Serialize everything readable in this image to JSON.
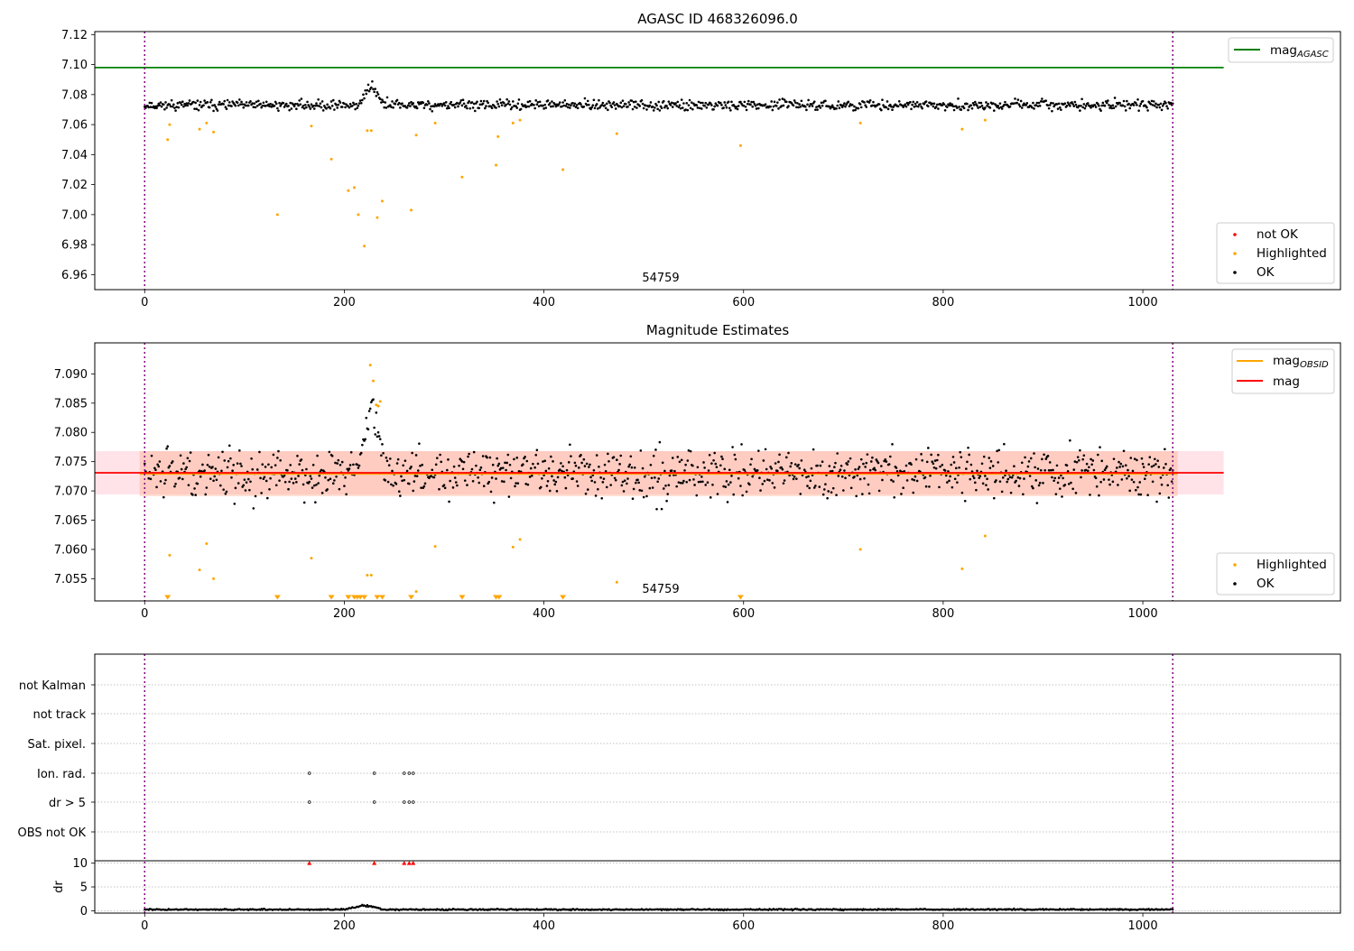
{
  "figure": {
    "panels": [
      {
        "title": "AGASC ID 468326096.0",
        "annotation": "54759",
        "legends": [
          {
            "items": [
              {
                "label": "mag",
                "sub": "AGASC",
                "kind": "line",
                "color": "#008000"
              }
            ]
          },
          {
            "items": [
              {
                "label": "not OK",
                "kind": "point",
                "color": "#ff0000"
              },
              {
                "label": "Highlighted",
                "kind": "point",
                "color": "#ffa500"
              },
              {
                "label": "OK",
                "kind": "point",
                "color": "#000000"
              }
            ]
          }
        ]
      },
      {
        "title": "Magnitude Estimates",
        "annotation": "54759",
        "legends": [
          {
            "items": [
              {
                "label": "mag",
                "sub": "OBSID",
                "kind": "line",
                "color": "#ffa500"
              },
              {
                "label": "mag",
                "kind": "line",
                "color": "#ff0000"
              }
            ]
          },
          {
            "items": [
              {
                "label": "Highlighted",
                "kind": "point",
                "color": "#ffa500"
              },
              {
                "label": "OK",
                "kind": "point",
                "color": "#000000"
              }
            ]
          }
        ]
      },
      {
        "title": "",
        "flag_labels": [
          "not Kalman",
          "not track",
          "Sat. pixel.",
          "Ion. rad.",
          "dr > 5",
          "OBS not OK"
        ],
        "dr_label": "dr"
      }
    ]
  },
  "chart_data": [
    {
      "type": "scatter",
      "title": "AGASC ID 468326096.0",
      "xlabel": "",
      "ylabel": "",
      "xlim": [
        -50,
        1198
      ],
      "ylim": [
        6.95,
        7.122
      ],
      "xticks": [
        0,
        200,
        400,
        600,
        800,
        1000
      ],
      "yticks": [
        6.96,
        6.98,
        7.0,
        7.02,
        7.04,
        7.06,
        7.08,
        7.1,
        7.12
      ],
      "ytick_decimals": 2,
      "grid": false,
      "legend_position": [
        "upper right",
        "lower right"
      ],
      "obsid_boundaries": [
        0,
        1030
      ],
      "reference_lines": [
        {
          "name": "mag_AGASC",
          "y": 7.098,
          "x_range": [
            -50,
            1081
          ],
          "color": "#008000"
        }
      ],
      "annotations": [
        {
          "text": "54759",
          "x": 515,
          "y": 6.955
        }
      ],
      "ok_series": {
        "name": "OK",
        "color": "#000000",
        "x_range": [
          0,
          1030
        ],
        "count": 1031,
        "baseline": 7.073,
        "scatter": 0.0028,
        "features": [
          {
            "x_range": [
              215,
              240
            ],
            "peak": 7.091
          }
        ]
      },
      "series": [
        {
          "name": "Highlighted",
          "color": "#ffa500",
          "points": [
            [
              23,
              7.05
            ],
            [
              25,
              7.06
            ],
            [
              55,
              7.057
            ],
            [
              62,
              7.061
            ],
            [
              69,
              7.055
            ],
            [
              133,
              7.0
            ],
            [
              167,
              7.059
            ],
            [
              187,
              7.037
            ],
            [
              204,
              7.016
            ],
            [
              210,
              7.018
            ],
            [
              214,
              7.0
            ],
            [
              220,
              6.979
            ],
            [
              223,
              7.056
            ],
            [
              227,
              7.056
            ],
            [
              233,
              6.998
            ],
            [
              238,
              7.009
            ],
            [
              267,
              7.003
            ],
            [
              272,
              7.053
            ],
            [
              291,
              7.061
            ],
            [
              318,
              7.025
            ],
            [
              352,
              7.033
            ],
            [
              354,
              7.052
            ],
            [
              369,
              7.061
            ],
            [
              376,
              7.063
            ],
            [
              419,
              7.03
            ],
            [
              473,
              7.054
            ],
            [
              597,
              7.046
            ],
            [
              717,
              7.061
            ],
            [
              819,
              7.057
            ],
            [
              842,
              7.063
            ]
          ]
        },
        {
          "name": "not OK",
          "color": "#ff0000",
          "points": []
        }
      ]
    },
    {
      "type": "scatter",
      "title": "Magnitude Estimates",
      "xlabel": "",
      "ylabel": "",
      "xlim": [
        -50,
        1198
      ],
      "ylim": [
        7.0512,
        7.0953
      ],
      "xticks": [
        0,
        200,
        400,
        600,
        800,
        1000
      ],
      "yticks": [
        7.055,
        7.06,
        7.065,
        7.07,
        7.075,
        7.08,
        7.085,
        7.09
      ],
      "ytick_decimals": 3,
      "grid": false,
      "legend_position": [
        "upper right",
        "lower right"
      ],
      "obsid_boundaries": [
        0,
        1030
      ],
      "reference_lines": [
        {
          "name": "mag_OBSID",
          "y": 7.0729,
          "x_range": [
            -5,
            1035
          ],
          "color": "#ffa500"
        },
        {
          "name": "mag",
          "y": 7.0731,
          "x_range": [
            -50,
            1081
          ],
          "color": "#ff0000"
        }
      ],
      "bands": [
        {
          "y_range": [
            7.0694,
            7.0768
          ],
          "x_range": [
            -50,
            1081
          ],
          "color": "#ffc0cb",
          "opacity": 0.45
        },
        {
          "y_range": [
            7.0691,
            7.0768
          ],
          "x_range": [
            -5,
            1035
          ],
          "color": "#ffa07a",
          "opacity": 0.35
        }
      ],
      "annotations": [
        {
          "text": "54759",
          "x": 515,
          "y": 7.0527
        }
      ],
      "ok_series": {
        "name": "OK",
        "color": "#000000",
        "x_range": [
          0,
          1030
        ],
        "count": 1031,
        "baseline": 7.073,
        "scatter": 0.0035,
        "features": [
          {
            "x_range": [
              215,
              240
            ],
            "peak": 7.091
          }
        ]
      },
      "series": [
        {
          "name": "Highlighted",
          "color": "#ffa500",
          "points": [
            [
              25,
              7.059
            ],
            [
              55,
              7.0565
            ],
            [
              62,
              7.061
            ],
            [
              69,
              7.055
            ],
            [
              167,
              7.0585
            ],
            [
              223,
              7.0556
            ],
            [
              227,
              7.0556
            ],
            [
              226,
              7.0915
            ],
            [
              229,
              7.0888
            ],
            [
              232,
              7.0847
            ],
            [
              234,
              7.0845
            ],
            [
              236,
              7.0853
            ],
            [
              272,
              7.0528
            ],
            [
              291,
              7.0605
            ],
            [
              369,
              7.0604
            ],
            [
              376,
              7.0617
            ],
            [
              473,
              7.0544
            ],
            [
              717,
              7.06
            ],
            [
              819,
              7.0567
            ],
            [
              842,
              7.0623
            ]
          ]
        },
        {
          "name": "Highlighted (below range)",
          "color": "#ffa500",
          "marker": "triangle-down",
          "x": [
            23,
            133,
            187,
            204,
            210,
            213,
            216,
            220,
            233,
            238,
            267,
            318,
            352,
            355,
            419,
            597
          ]
        }
      ]
    },
    {
      "type": "scatter",
      "title": "",
      "xlabel": "",
      "ylabel": "dr",
      "xlim": [
        -50,
        1198
      ],
      "ylim": [
        -0.5,
        10.5
      ],
      "xticks": [
        0,
        200,
        400,
        600,
        800,
        1000
      ],
      "yticks": [
        0,
        5,
        10
      ],
      "grid": true,
      "obsid_boundaries": [
        0,
        1030
      ],
      "flag_rows": [
        "not Kalman",
        "not track",
        "Sat. pixel.",
        "Ion. rad.",
        "dr > 5",
        "OBS not OK"
      ],
      "flags": [
        {
          "name": "Ion. rad.",
          "x": [
            165,
            230,
            260,
            265,
            269
          ]
        },
        {
          "name": "dr > 5",
          "x": [
            165,
            230,
            260,
            265,
            269
          ]
        }
      ],
      "dr_series": {
        "name": "dr",
        "color": "#000000",
        "x_range": [
          0,
          1030
        ],
        "count": 1031,
        "baseline": 0.25,
        "scatter": 0.12,
        "features": [
          {
            "x_range": [
              200,
              240
            ],
            "peak": 1.4
          }
        ]
      },
      "dr_clipped": {
        "color": "#ff0000",
        "marker": "triangle-up",
        "y": 10,
        "x": [
          165,
          230,
          260,
          265,
          269
        ]
      }
    }
  ]
}
